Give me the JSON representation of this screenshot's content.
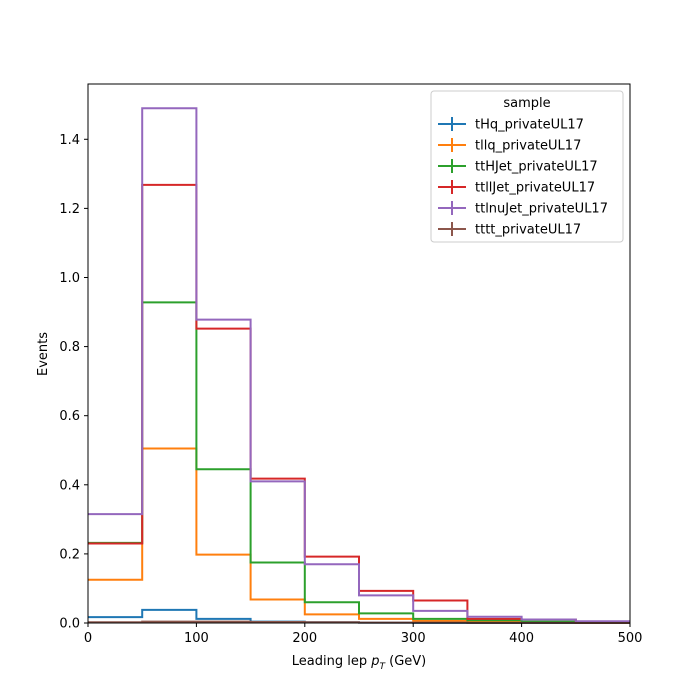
{
  "chart_data": {
    "type": "step",
    "xlabel": "Leading lep",
    "xlabel_sub": "p",
    "xlabel_subscript": "T",
    "xlabel_unit": "(GeV)",
    "ylabel": "Events",
    "xlim": [
      0,
      500
    ],
    "ylim": [
      0,
      1.56
    ],
    "xticks": [
      "0",
      "100",
      "200",
      "300",
      "400",
      "500"
    ],
    "yticks": [
      "0.0",
      "0.2",
      "0.4",
      "0.6",
      "0.8",
      "1.0",
      "1.2",
      "1.4"
    ],
    "bin_edges": [
      0,
      50,
      100,
      150,
      200,
      250,
      300,
      350,
      400,
      450,
      500
    ],
    "legend": {
      "title": "sample",
      "placement": "upper right"
    },
    "series": [
      {
        "name": "tHq_privateUL17",
        "color": "#1f77b4",
        "values": [
          0.017,
          0.038,
          0.012,
          0.004,
          0.002,
          0.001,
          0.0005,
          0.0003,
          0.0002,
          0.0001
        ]
      },
      {
        "name": "tllq_privateUL17",
        "color": "#ff7f0e",
        "values": [
          0.125,
          0.505,
          0.198,
          0.068,
          0.025,
          0.012,
          0.006,
          0.003,
          0.002,
          0.001
        ]
      },
      {
        "name": "ttHJet_privateUL17",
        "color": "#2ca02c",
        "values": [
          0.232,
          0.928,
          0.445,
          0.175,
          0.06,
          0.028,
          0.012,
          0.008,
          0.004,
          0.002
        ]
      },
      {
        "name": "ttllJet_privateUL17",
        "color": "#d62728",
        "values": [
          0.23,
          1.268,
          0.852,
          0.418,
          0.192,
          0.093,
          0.065,
          0.012,
          0.01,
          0.004
        ]
      },
      {
        "name": "ttlnuJet_privateUL17",
        "color": "#9467bd",
        "values": [
          0.315,
          1.49,
          0.878,
          0.41,
          0.17,
          0.08,
          0.035,
          0.018,
          0.01,
          0.005
        ]
      },
      {
        "name": "tttt_privateUL17",
        "color": "#8c564b",
        "values": [
          0.002,
          0.004,
          0.004,
          0.003,
          0.002,
          0.001,
          0.001,
          0.0005,
          0.0003,
          0.0001
        ]
      }
    ]
  }
}
